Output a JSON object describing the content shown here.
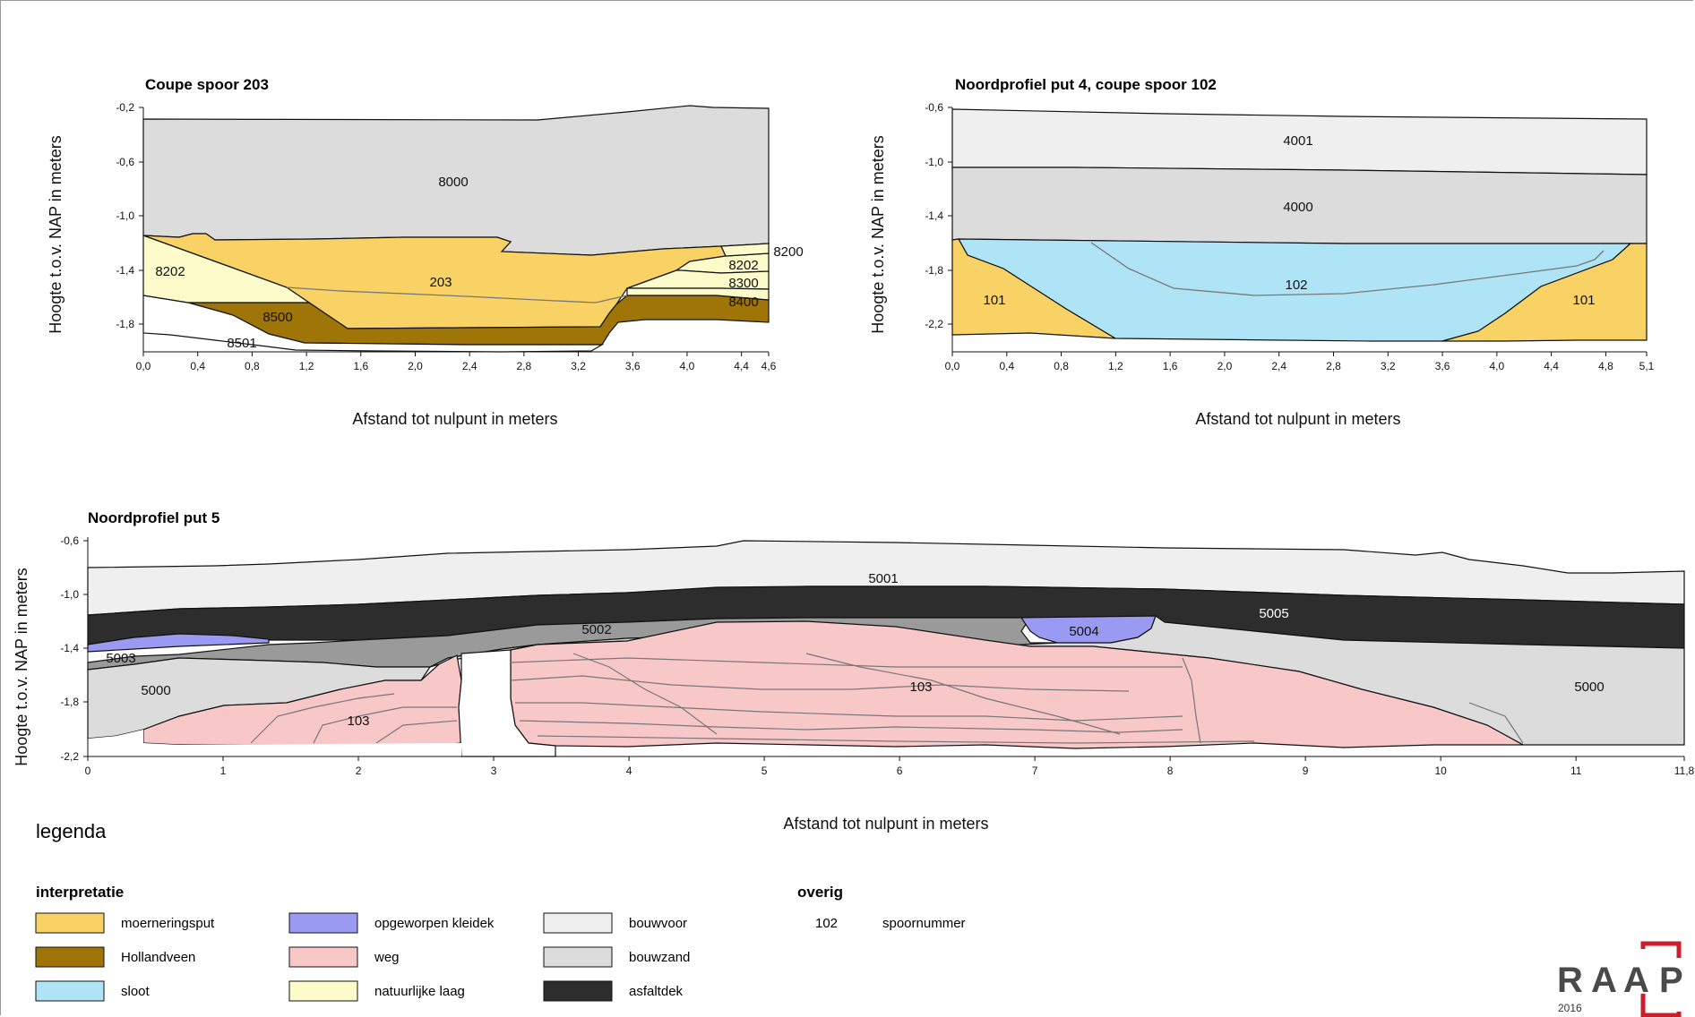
{
  "colors": {
    "moerneringsput": "#f8d264",
    "hollandveen": "#a07508",
    "sloot": "#aee4f6",
    "opgeworpen_kleidek": "#9b9af2",
    "weg": "#f8c8c8",
    "natuurlijke_laag": "#fdfbca",
    "bouwvoor": "#efefef",
    "bouwzand": "#dcdcdc",
    "asfaltdek": "#2d2d2d",
    "logo_red": "#c8202a"
  },
  "profile1": {
    "title": "Coupe spoor 203",
    "y_axis_label": "Hoogte t.o.v. NAP in meters",
    "x_axis_label": "Afstand tot nulpunt in meters",
    "x_ticks": [
      "0,0",
      "0,4",
      "0,8",
      "1,2",
      "1,6",
      "2,0",
      "2,4",
      "2,8",
      "3,2",
      "3,6",
      "4,0",
      "4,4",
      "4,6"
    ],
    "y_ticks": [
      "-0,2",
      "-0,6",
      "-1,0",
      "-1,4",
      "-1,8"
    ],
    "labels": [
      "8000",
      "8202",
      "203",
      "8500",
      "8501",
      "8200",
      "8202",
      "8300",
      "8400"
    ]
  },
  "profile2": {
    "title": "Noordprofiel put 4, coupe spoor 102",
    "y_axis_label": "Hoogte t.o.v. NAP in meters",
    "x_axis_label": "Afstand tot nulpunt in meters",
    "x_ticks": [
      "0,0",
      "0,4",
      "0,8",
      "1,2",
      "1,6",
      "2,0",
      "2,4",
      "2,8",
      "3,2",
      "3,6",
      "4,0",
      "4,4",
      "4,8",
      "5,1"
    ],
    "y_ticks": [
      "-0,6",
      "-1,0",
      "-1,4",
      "-1,8",
      "-2,2"
    ],
    "labels": [
      "4001",
      "4000",
      "102",
      "101",
      "101"
    ]
  },
  "profile3": {
    "title": "Noordprofiel put 5",
    "y_axis_label": "Hoogte t.o.v. NAP in meters",
    "x_axis_label": "Afstand tot nulpunt in meters",
    "x_ticks": [
      "0",
      "1",
      "2",
      "3",
      "4",
      "5",
      "6",
      "7",
      "8",
      "9",
      "10",
      "11",
      "11,8"
    ],
    "y_ticks": [
      "-0,6",
      "-1,0",
      "-1,4",
      "-1,8",
      "-2,2"
    ],
    "labels": [
      "5001",
      "5005",
      "5002",
      "5004",
      "5003",
      "5000",
      "103",
      "103",
      "5000"
    ]
  },
  "legend": {
    "title": "legenda",
    "interpretatie_heading": "interpretatie",
    "overig_heading": "overig",
    "items": [
      {
        "label": "moerneringsput",
        "color": "#f8d264"
      },
      {
        "label": "Hollandveen",
        "color": "#a07508"
      },
      {
        "label": "sloot",
        "color": "#aee4f6"
      },
      {
        "label": "opgeworpen kleidek",
        "color": "#9b9af2"
      },
      {
        "label": "weg",
        "color": "#f8c8c8"
      },
      {
        "label": "natuurlijke laag",
        "color": "#fdfbca"
      },
      {
        "label": "bouwvoor",
        "color": "#efefef"
      },
      {
        "label": "bouwzand",
        "color": "#dcdcdc"
      },
      {
        "label": "asfaltdek",
        "color": "#2d2d2d"
      }
    ],
    "overig_number": "102",
    "overig_label": "spoornummer"
  },
  "logo": {
    "letters": [
      "R",
      "A",
      "A",
      "P"
    ],
    "year": "2016"
  }
}
